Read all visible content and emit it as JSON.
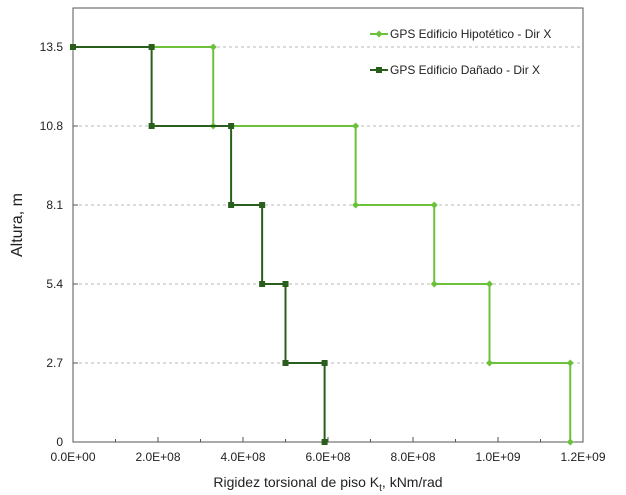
{
  "chart_data": {
    "type": "line",
    "step": true,
    "xlabel": "Rigidez torsional de piso K",
    "xlabel_sub": "t",
    "xlabel_unit": ", kNm/rad",
    "ylabel": "Altura, m",
    "xlim": [
      0,
      1200000000
    ],
    "ylim": [
      0,
      13.5
    ],
    "xticks": [
      0,
      200000000,
      400000000,
      600000000,
      800000000,
      1000000000,
      1200000000
    ],
    "xtick_labels": [
      "0.0E+00",
      "2.0E+08",
      "4.0E+08",
      "6.0E+08",
      "8.0E+08",
      "1.0E+09",
      "1.2E+09"
    ],
    "yticks": [
      0,
      2.7,
      5.4,
      8.1,
      10.8,
      13.5
    ],
    "ytick_labels": [
      "0",
      "2.7",
      "5.4",
      "8.1",
      "10.8",
      "13.5"
    ],
    "grid": "horizontal-dashed",
    "legend_position": "top-right",
    "series": [
      {
        "name": "GPS Edificio Hipotético - Dir X",
        "color": "#6cc13a",
        "marker": "diamond",
        "points": [
          [
            1170000000,
            0
          ],
          [
            1170000000,
            2.7
          ],
          [
            980000000,
            2.7
          ],
          [
            980000000,
            5.4
          ],
          [
            850000000,
            5.4
          ],
          [
            850000000,
            8.1
          ],
          [
            665000000,
            8.1
          ],
          [
            665000000,
            10.8
          ],
          [
            330000000,
            10.8
          ],
          [
            330000000,
            13.5
          ],
          [
            0,
            13.5
          ]
        ]
      },
      {
        "name": "GPS Edificio Dañado -  Dir X",
        "color": "#2a5e1c",
        "marker": "square",
        "points": [
          [
            592000000,
            0
          ],
          [
            592000000,
            2.7
          ],
          [
            500000000,
            2.7
          ],
          [
            500000000,
            5.4
          ],
          [
            445000000,
            5.4
          ],
          [
            445000000,
            8.1
          ],
          [
            372000000,
            8.1
          ],
          [
            372000000,
            10.8
          ],
          [
            185000000,
            10.8
          ],
          [
            185000000,
            13.5
          ],
          [
            0,
            13.5
          ]
        ]
      }
    ]
  }
}
